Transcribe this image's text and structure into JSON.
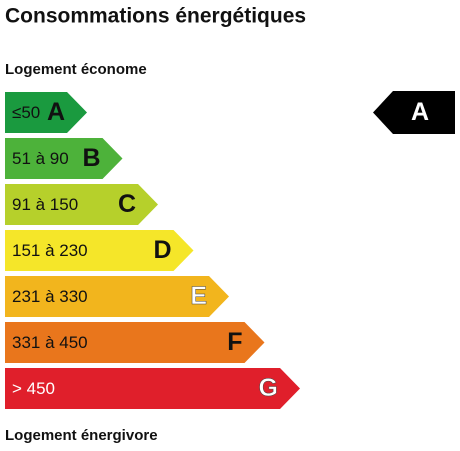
{
  "title": "Consommations énergétiques",
  "top_label": "Logement économe",
  "bottom_label": "Logement énergivore",
  "classes": [
    {
      "range": "≤50",
      "letter": "A",
      "color": "#1a9a3f",
      "text_color": "#111111",
      "letter_color": "#111111"
    },
    {
      "range": "51 à 90",
      "letter": "B",
      "color": "#4db23a",
      "text_color": "#111111",
      "letter_color": "#111111"
    },
    {
      "range": "91 à 150",
      "letter": "C",
      "color": "#b6d02b",
      "text_color": "#111111",
      "letter_color": "#111111"
    },
    {
      "range": "151 à 230",
      "letter": "D",
      "color": "#f5e629",
      "text_color": "#111111",
      "letter_color": "#111111"
    },
    {
      "range": "231 à 330",
      "letter": "E",
      "color": "#f2b51d",
      "text_color": "#111111",
      "letter_color": "#ffffff"
    },
    {
      "range": "331 à 450",
      "letter": "F",
      "color": "#e9761c",
      "text_color": "#111111",
      "letter_color": "#111111"
    },
    {
      "range": "> 450",
      "letter": "G",
      "color": "#e01f2b",
      "text_color": "#ffffff",
      "letter_color": "#ffffff"
    }
  ],
  "rating": "A"
}
